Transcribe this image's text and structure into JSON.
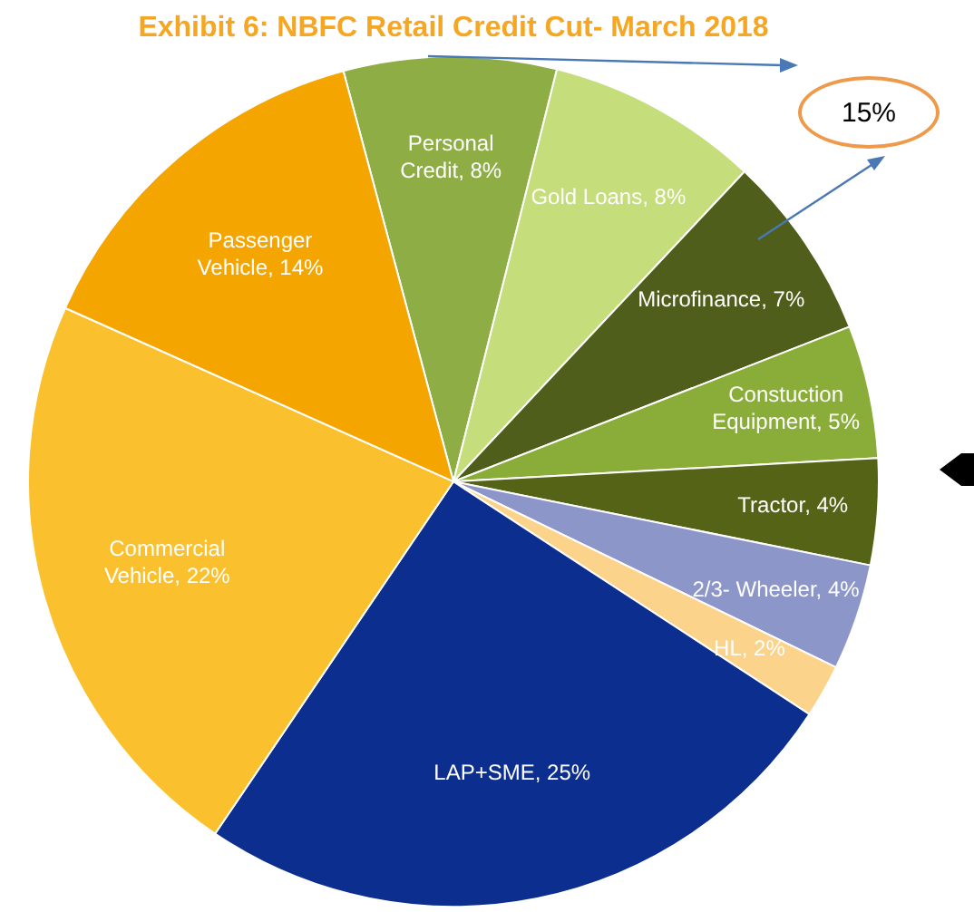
{
  "chart_data": {
    "type": "pie",
    "title": "Exhibit 6: NBFC Retail Credit Cut- March 2018",
    "categories": [
      "Personal Credit",
      "Gold Loans",
      "Microfinance",
      "Constuction Equipment",
      "Tractor",
      "2/3- Wheeler",
      "HL",
      "LAP+SME",
      "Commercial Vehicle",
      "Passenger Vehicle"
    ],
    "values": [
      8,
      8,
      7,
      5,
      4,
      4,
      2,
      25,
      22,
      14
    ],
    "colors": [
      "#8fad45",
      "#c5dd7a",
      "#4f5e1a",
      "#8aad3a",
      "#556317",
      "#8d96c9",
      "#fcd38a",
      "#0c2e8e",
      "#fbc02d",
      "#f5a500"
    ],
    "value_labels": [
      "8%",
      "8%",
      "7%",
      "5%",
      "4%",
      "4%",
      "2%",
      "25%",
      "22%",
      "14%"
    ],
    "legend": false,
    "annotations": [
      "15%"
    ]
  }
}
